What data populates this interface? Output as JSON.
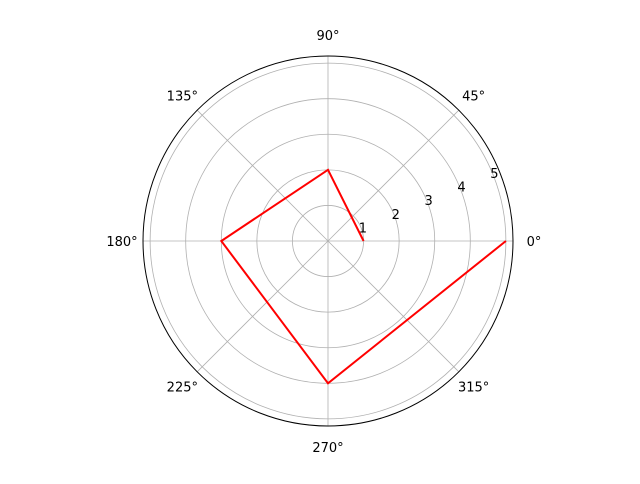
{
  "chart_data": {
    "type": "line",
    "projection": "polar",
    "title": "",
    "theta_deg": [
      0,
      90,
      180,
      270,
      360
    ],
    "r": [
      1,
      2,
      3,
      4,
      5
    ],
    "rlim": [
      0,
      5.2
    ],
    "r_ticks": [
      "1",
      "2",
      "3",
      "4",
      "5"
    ],
    "r_tick_values": [
      1,
      2,
      3,
      4,
      5
    ],
    "r_label_angle_deg": 22.5,
    "theta_ticks": [
      "0°",
      "45°",
      "90°",
      "135°",
      "180°",
      "225°",
      "270°",
      "315°"
    ],
    "theta_tick_values_deg": [
      0,
      45,
      90,
      135,
      180,
      225,
      270,
      315
    ],
    "grid": true,
    "line_color": "#ff0000",
    "grid_color": "#b0b0b0"
  }
}
